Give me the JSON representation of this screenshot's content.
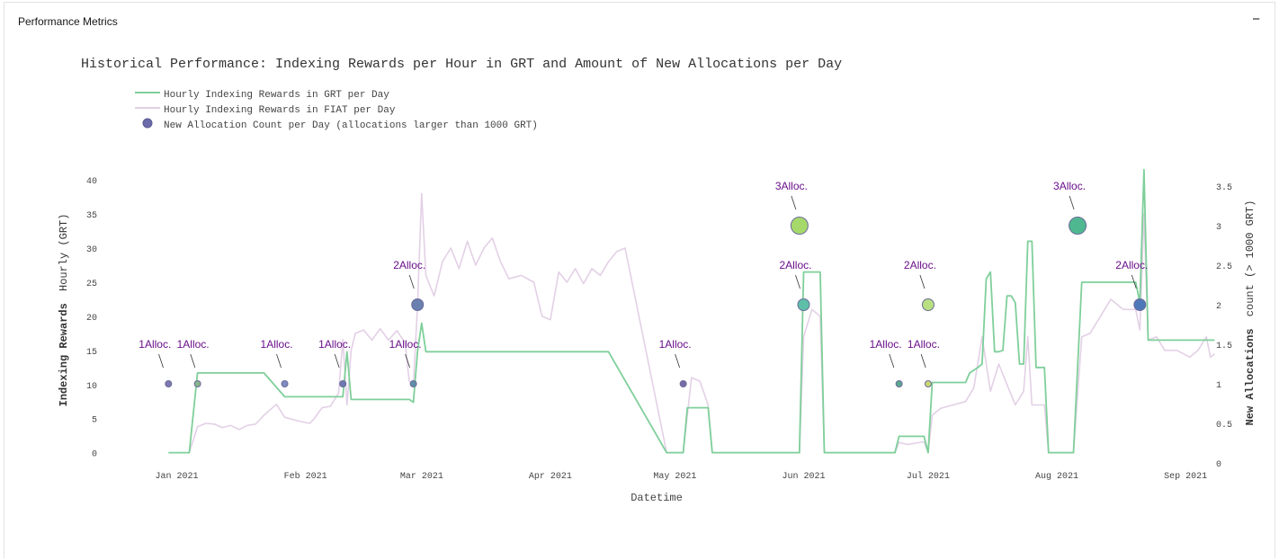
{
  "panel": {
    "title": "Performance Metrics",
    "collapse_label": "−"
  },
  "chart_data": {
    "type": "line",
    "title": "Historical Performance: Indexing Rewards per Hour in GRT and Amount of New Allocations per Day",
    "xlabel": "Datetime",
    "ylabel_bold": "Indexing Rewards",
    "ylabel_rest": "Hourly (GRT)",
    "y2label_bold": "New Allocations",
    "y2label_rest": "count (> 1000 GRT)",
    "ylim": [
      -1.5,
      42
    ],
    "y2lim": [
      0,
      3.75
    ],
    "x_range": [
      "2020-12-23",
      "2021-09-09"
    ],
    "x_ticks": [
      {
        "date": "2021-01-01",
        "label": "Jan 2021"
      },
      {
        "date": "2021-02-01",
        "label": "Feb 2021"
      },
      {
        "date": "2021-03-01",
        "label": "Mar 2021"
      },
      {
        "date": "2021-04-01",
        "label": "Apr 2021"
      },
      {
        "date": "2021-05-01",
        "label": "May 2021"
      },
      {
        "date": "2021-06-01",
        "label": "Jun 2021"
      },
      {
        "date": "2021-07-01",
        "label": "Jul 2021"
      },
      {
        "date": "2021-08-01",
        "label": "Aug 2021"
      },
      {
        "date": "2021-09-01",
        "label": "Sep 2021"
      }
    ],
    "y_ticks": [
      0,
      5,
      10,
      15,
      20,
      25,
      30,
      35,
      40
    ],
    "y2_ticks": [
      {
        "v": 0,
        "label": "0"
      },
      {
        "v": 0.5,
        "label": "0.5"
      },
      {
        "v": 1,
        "label": "1"
      },
      {
        "v": 1.5,
        "label": "1.5"
      },
      {
        "v": 2,
        "label": "2"
      },
      {
        "v": 2.5,
        "label": "2.5"
      },
      {
        "v": 3,
        "label": "3"
      },
      {
        "v": 3.5,
        "label": "3.5"
      }
    ],
    "legend": {
      "placement": "top-left",
      "items": [
        {
          "label": "Hourly Indexing Rewards in GRT per Day",
          "kind": "line",
          "color": "#7fcf9a"
        },
        {
          "label": "Hourly Indexing Rewards in FIAT per Day",
          "kind": "line",
          "color": "#e3d0e6"
        },
        {
          "label": "New Allocation Count per Day (allocations larger than 1000 GRT)",
          "kind": "marker",
          "color": "#6b6bab"
        }
      ]
    },
    "series": [
      {
        "name": "Hourly Indexing Rewards in GRT per Day",
        "color": "#7fcf9a",
        "points": [
          [
            "2020-12-30",
            0
          ],
          [
            "2021-01-04",
            0
          ],
          [
            "2021-01-06",
            11.7
          ],
          [
            "2021-01-22",
            11.7
          ],
          [
            "2021-01-27",
            8.2
          ],
          [
            "2021-02-10",
            8.2
          ],
          [
            "2021-02-11",
            14.8
          ],
          [
            "2021-02-12",
            7.8
          ],
          [
            "2021-02-26",
            7.8
          ],
          [
            "2021-02-27",
            7.4
          ],
          [
            "2021-02-28",
            14.8
          ],
          [
            "2021-03-01",
            19
          ],
          [
            "2021-03-02",
            14.8
          ],
          [
            "2021-04-15",
            14.8
          ],
          [
            "2021-04-29",
            0
          ],
          [
            "2021-05-03",
            0
          ],
          [
            "2021-05-04",
            6.6
          ],
          [
            "2021-05-09",
            6.6
          ],
          [
            "2021-05-10",
            0
          ],
          [
            "2021-05-31",
            0
          ],
          [
            "2021-06-01",
            26.5
          ],
          [
            "2021-06-05",
            26.5
          ],
          [
            "2021-06-06",
            0
          ],
          [
            "2021-06-23",
            0
          ],
          [
            "2021-06-24",
            2.4
          ],
          [
            "2021-06-30",
            2.4
          ],
          [
            "2021-07-01",
            0
          ],
          [
            "2021-07-02",
            10.3
          ],
          [
            "2021-07-10",
            10.3
          ],
          [
            "2021-07-11",
            11.7
          ],
          [
            "2021-07-13",
            12.5
          ],
          [
            "2021-07-14",
            13
          ],
          [
            "2021-07-15",
            25.5
          ],
          [
            "2021-07-16",
            26.5
          ],
          [
            "2021-07-17",
            14.8
          ],
          [
            "2021-07-18",
            14.8
          ],
          [
            "2021-07-19",
            15
          ],
          [
            "2021-07-20",
            23
          ],
          [
            "2021-07-21",
            23
          ],
          [
            "2021-07-22",
            22
          ],
          [
            "2021-07-23",
            13
          ],
          [
            "2021-07-24",
            13
          ],
          [
            "2021-07-25",
            31
          ],
          [
            "2021-07-26",
            31
          ],
          [
            "2021-07-27",
            12.5
          ],
          [
            "2021-07-29",
            12.5
          ],
          [
            "2021-07-30",
            0
          ],
          [
            "2021-08-05",
            0
          ],
          [
            "2021-08-07",
            25
          ],
          [
            "2021-08-20",
            25
          ],
          [
            "2021-08-21",
            22
          ],
          [
            "2021-08-22",
            41.5
          ],
          [
            "2021-08-23",
            16.5
          ],
          [
            "2021-09-08",
            16.5
          ]
        ]
      },
      {
        "name": "Hourly Indexing Rewards in FIAT per Day",
        "color": "#e3d0e6",
        "points": [
          [
            "2021-01-04",
            0
          ],
          [
            "2021-01-06",
            3.8
          ],
          [
            "2021-01-08",
            4.3
          ],
          [
            "2021-01-10",
            4.2
          ],
          [
            "2021-01-12",
            3.7
          ],
          [
            "2021-01-14",
            4.0
          ],
          [
            "2021-01-16",
            3.4
          ],
          [
            "2021-01-18",
            4.0
          ],
          [
            "2021-01-20",
            4.2
          ],
          [
            "2021-01-22",
            5.5
          ],
          [
            "2021-01-25",
            7.1
          ],
          [
            "2021-01-27",
            5.2
          ],
          [
            "2021-01-30",
            4.7
          ],
          [
            "2021-02-02",
            4.3
          ],
          [
            "2021-02-03",
            4.9
          ],
          [
            "2021-02-05",
            6.6
          ],
          [
            "2021-02-07",
            6.8
          ],
          [
            "2021-02-09",
            8.8
          ],
          [
            "2021-02-10",
            16.6
          ],
          [
            "2021-02-11",
            7.0
          ],
          [
            "2021-02-12",
            15.0
          ],
          [
            "2021-02-13",
            17.5
          ],
          [
            "2021-02-15",
            18.0
          ],
          [
            "2021-02-17",
            16.5
          ],
          [
            "2021-02-19",
            18.2
          ],
          [
            "2021-02-21",
            16.5
          ],
          [
            "2021-02-23",
            17.9
          ],
          [
            "2021-02-25",
            16.1
          ],
          [
            "2021-02-26",
            10.5
          ],
          [
            "2021-02-27",
            10.0
          ],
          [
            "2021-02-28",
            21.5
          ],
          [
            "2021-03-01",
            38.0
          ],
          [
            "2021-03-02",
            26.0
          ],
          [
            "2021-03-04",
            23.0
          ],
          [
            "2021-03-06",
            28.0
          ],
          [
            "2021-03-08",
            30.0
          ],
          [
            "2021-03-10",
            27.0
          ],
          [
            "2021-03-12",
            31.0
          ],
          [
            "2021-03-14",
            27.5
          ],
          [
            "2021-03-16",
            30.0
          ],
          [
            "2021-03-18",
            31.5
          ],
          [
            "2021-03-20",
            28.0
          ],
          [
            "2021-03-22",
            25.5
          ],
          [
            "2021-03-25",
            26.0
          ],
          [
            "2021-03-28",
            25.0
          ],
          [
            "2021-03-30",
            20.0
          ],
          [
            "2021-04-01",
            19.5
          ],
          [
            "2021-04-03",
            26.5
          ],
          [
            "2021-04-05",
            25.0
          ],
          [
            "2021-04-07",
            27.0
          ],
          [
            "2021-04-09",
            24.8
          ],
          [
            "2021-04-11",
            27.0
          ],
          [
            "2021-04-13",
            26.0
          ],
          [
            "2021-04-15",
            28.0
          ],
          [
            "2021-04-17",
            29.5
          ],
          [
            "2021-04-19",
            30.0
          ],
          [
            "2021-04-29",
            0
          ],
          [
            "2021-05-03",
            0
          ],
          [
            "2021-05-05",
            11.0
          ],
          [
            "2021-05-07",
            10.5
          ],
          [
            "2021-05-09",
            7.0
          ],
          [
            "2021-05-10",
            0
          ],
          [
            "2021-05-31",
            0
          ],
          [
            "2021-06-01",
            17.0
          ],
          [
            "2021-06-03",
            21.0
          ],
          [
            "2021-06-05",
            20.0
          ],
          [
            "2021-06-06",
            0
          ],
          [
            "2021-06-23",
            0
          ],
          [
            "2021-06-24",
            1.5
          ],
          [
            "2021-06-26",
            1.2
          ],
          [
            "2021-06-30",
            1.6
          ],
          [
            "2021-07-01",
            0
          ],
          [
            "2021-07-02",
            5.5
          ],
          [
            "2021-07-04",
            6.5
          ],
          [
            "2021-07-07",
            7.0
          ],
          [
            "2021-07-10",
            7.5
          ],
          [
            "2021-07-12",
            9.5
          ],
          [
            "2021-07-14",
            17.0
          ],
          [
            "2021-07-16",
            9.0
          ],
          [
            "2021-07-18",
            13.0
          ],
          [
            "2021-07-20",
            10.0
          ],
          [
            "2021-07-22",
            7.0
          ],
          [
            "2021-07-24",
            9.0
          ],
          [
            "2021-07-25",
            17.0
          ],
          [
            "2021-07-26",
            7.0
          ],
          [
            "2021-07-29",
            7.0
          ],
          [
            "2021-07-30",
            0
          ],
          [
            "2021-08-05",
            0
          ],
          [
            "2021-08-07",
            17.0
          ],
          [
            "2021-08-09",
            17.5
          ],
          [
            "2021-08-11",
            19.5
          ],
          [
            "2021-08-14",
            22.5
          ],
          [
            "2021-08-17",
            21.0
          ],
          [
            "2021-08-20",
            21.0
          ],
          [
            "2021-08-21",
            18.0
          ],
          [
            "2021-08-22",
            35.0
          ],
          [
            "2021-08-23",
            16.5
          ],
          [
            "2021-08-25",
            17.0
          ],
          [
            "2021-08-27",
            15.0
          ],
          [
            "2021-08-30",
            15.0
          ],
          [
            "2021-09-02",
            14.0
          ],
          [
            "2021-09-04",
            15.0
          ],
          [
            "2021-09-06",
            17.0
          ],
          [
            "2021-09-07",
            14.0
          ],
          [
            "2021-09-08",
            14.5
          ]
        ]
      }
    ],
    "allocations": [
      {
        "date": "2020-12-30",
        "count": 1,
        "label": "1Alloc.",
        "color": "#7e7ab0"
      },
      {
        "date": "2021-01-06",
        "count": 1,
        "label": "1Alloc.",
        "color": "#86b58a"
      },
      {
        "date": "2021-01-27",
        "count": 1,
        "label": "1Alloc.",
        "color": "#7e8cc0"
      },
      {
        "date": "2021-02-10",
        "count": 1,
        "label": "1Alloc.",
        "color": "#6f78b0"
      },
      {
        "date": "2021-02-27",
        "count": 1,
        "label": "1Alloc.",
        "color": "#5f8fa8"
      },
      {
        "date": "2021-02-28",
        "count": 2,
        "label": "2Alloc.",
        "color": "#6a80b0"
      },
      {
        "date": "2021-05-03",
        "count": 1,
        "label": "1Alloc.",
        "color": "#7a6aa8"
      },
      {
        "date": "2021-05-31",
        "count": 3,
        "label": "3Alloc.",
        "color": "#a6d96a"
      },
      {
        "date": "2021-06-01",
        "count": 2,
        "label": "2Alloc.",
        "color": "#5ebfa8"
      },
      {
        "date": "2021-06-24",
        "count": 1,
        "label": "1Alloc.",
        "color": "#5aa890"
      },
      {
        "date": "2021-07-01",
        "count": 1,
        "label": "1Alloc.",
        "color": "#c8d870"
      },
      {
        "date": "2021-07-01",
        "count": 2,
        "label": "2Alloc.",
        "color": "#b8e080"
      },
      {
        "date": "2021-08-06",
        "count": 3,
        "label": "3Alloc.",
        "color": "#4fb890"
      },
      {
        "date": "2021-08-21",
        "count": 2,
        "label": "2Alloc.",
        "color": "#4f78b8"
      }
    ]
  }
}
